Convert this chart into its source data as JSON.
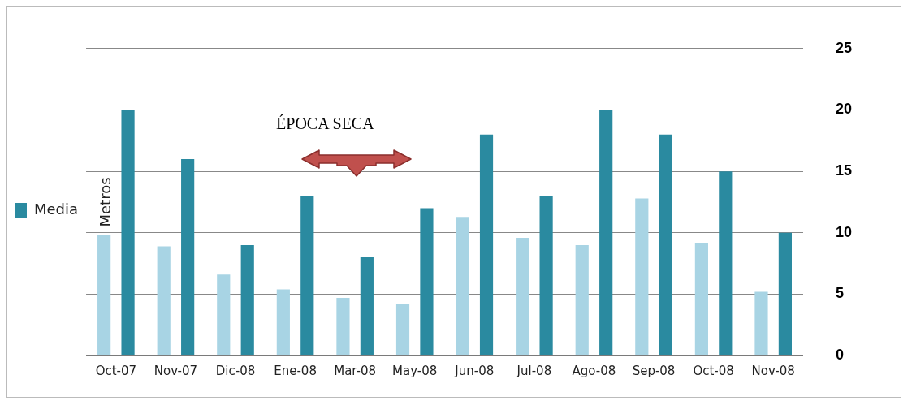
{
  "chart_data": {
    "type": "bar",
    "ylabel": "Metros",
    "categories": [
      "Oct-07",
      "Nov-07",
      "Dic-08",
      "Ene-08",
      "Mar-08",
      "May-08",
      "Jun-08",
      "Jul-08",
      "Ago-08",
      "Sep-08",
      "Oct-08",
      "Nov-08"
    ],
    "series": [
      {
        "color": "#a8d4e4",
        "values": [
          9.8,
          8.9,
          6.6,
          5.4,
          4.7,
          4.2,
          11.3,
          9.6,
          9.0,
          12.8,
          9.2,
          5.2
        ]
      },
      {
        "name": "Media",
        "color": "#2a8aa0",
        "values": [
          20,
          16,
          9,
          13,
          8,
          12,
          18,
          13,
          20,
          18,
          15,
          10
        ]
      }
    ],
    "ylim": [
      0,
      25
    ],
    "yticks": [
      0,
      5,
      10,
      15,
      20,
      25
    ],
    "grid": "y",
    "legend": "left",
    "annotations": [
      "ÉPOCA SECA"
    ]
  }
}
